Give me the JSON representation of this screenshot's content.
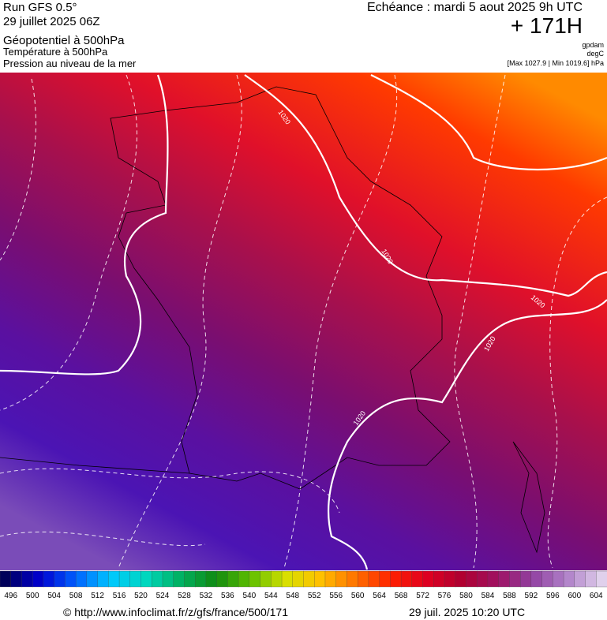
{
  "header": {
    "run": "Run GFS 0.5°",
    "date": "29 juillet 2025 06Z",
    "field1": "Géopotentiel à 500hPa",
    "field2": "Température à 500hPa",
    "field3": "Pression au niveau de la mer",
    "echeance": "Echéance : mardi 5 aout 2025 9h UTC",
    "hour": "+ 171H",
    "unit1": "gpdam",
    "unit2": "degC",
    "range": "[Max 1027.9 | Min 1019.6] hPa"
  },
  "map": {
    "isobar_labels": [
      "1020",
      "1020",
      "1020",
      "1020",
      "1020"
    ]
  },
  "colorbar": {
    "labels": [
      496,
      500,
      504,
      508,
      512,
      516,
      520,
      524,
      528,
      532,
      536,
      540,
      544,
      548,
      552,
      556,
      560,
      564,
      568,
      572,
      576,
      580,
      584,
      588,
      592,
      596,
      600,
      604
    ],
    "colors": [
      "#00005a",
      "#0000d0",
      "#0060ff",
      "#00c8ff",
      "#00d8c0",
      "#00b060",
      "#108a10",
      "#60c000",
      "#d8e000",
      "#ffc000",
      "#ff7000",
      "#ff2000",
      "#e00020",
      "#b00030",
      "#a01060",
      "#9040a0",
      "#b080c8",
      "#e0d0ec"
    ]
  },
  "footer": {
    "url": "© http://www.infoclimat.fr/z/gfs/france/500/171",
    "generated": "29 juil. 2025 10:20 UTC"
  }
}
